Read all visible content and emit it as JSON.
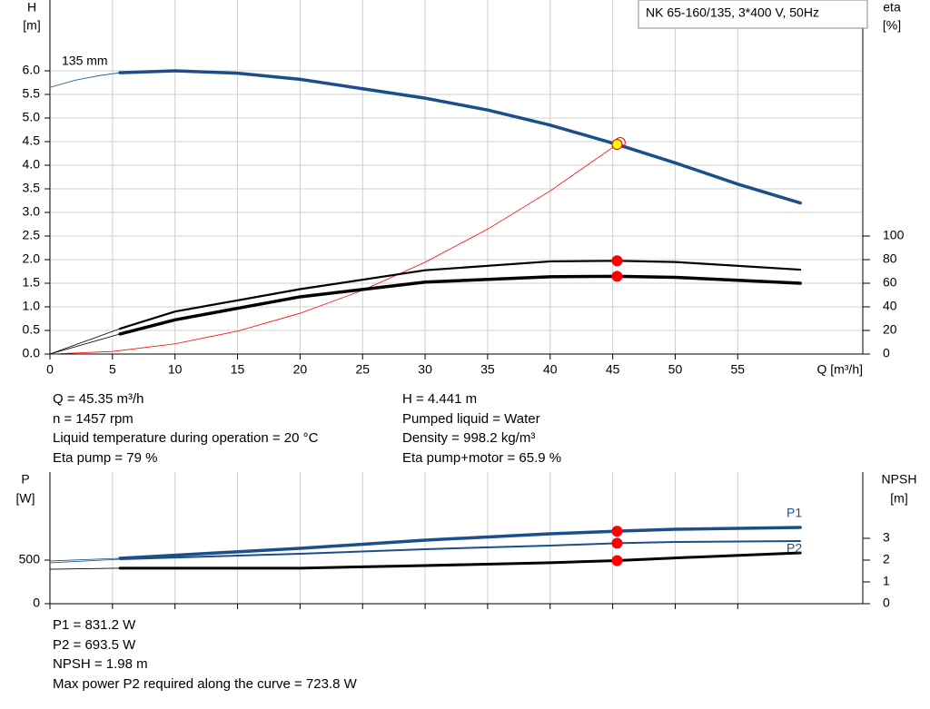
{
  "chart_data": [
    {
      "type": "line",
      "title": "NK 65-160/135, 3*400 V, 50Hz",
      "y_label": "H",
      "y_unit": "[m]",
      "y2_label": "eta",
      "y2_unit": "[%]",
      "x_label": "Q [m³/h]",
      "curve_label": "135 mm",
      "xlim": [
        0,
        65
      ],
      "xticks": [
        0,
        5,
        10,
        15,
        20,
        25,
        30,
        35,
        40,
        45,
        50,
        55
      ],
      "ylim": [
        0,
        7.5
      ],
      "yticks": [
        {
          "value": 0,
          "label": "0.0"
        },
        0.5,
        {
          "value": 1,
          "label": "1.0"
        },
        1.5,
        {
          "value": 2,
          "label": "2.0"
        },
        2.5,
        {
          "value": 3,
          "label": "3.0"
        },
        3.5,
        {
          "value": 4,
          "label": "4.0"
        },
        4.5,
        {
          "value": 5,
          "label": "5.0"
        },
        5.5,
        {
          "value": 6,
          "label": "6.0"
        }
      ],
      "y2lim": [
        0,
        300
      ],
      "y2ticks": [
        0,
        20,
        40,
        60,
        80,
        100
      ],
      "grid": true,
      "series": [
        {
          "color": "#1a4f8a",
          "width": 0.8,
          "x": [
            0,
            2,
            4,
            5.6
          ],
          "values": [
            5.65,
            5.8,
            5.9,
            5.96
          ]
        },
        {
          "color": "#1a4f8a",
          "width": 3.5,
          "x": [
            5.6,
            10,
            15,
            20,
            25,
            30,
            35,
            40,
            45.35,
            50,
            55,
            60
          ],
          "values": [
            5.96,
            6.0,
            5.95,
            5.82,
            5.62,
            5.42,
            5.17,
            4.85,
            4.441,
            4.05,
            3.6,
            3.2
          ]
        },
        {
          "color": "#ff0000",
          "width": 0.8,
          "x": [
            0,
            5,
            10,
            15,
            20,
            25,
            30,
            35,
            40,
            45.35
          ],
          "values": [
            0,
            0.054,
            0.216,
            0.486,
            0.864,
            1.35,
            1.944,
            2.646,
            3.456,
            4.441
          ]
        },
        {
          "color": "#000000",
          "width": 0.8,
          "axis": "y2",
          "x": [
            0,
            5.6
          ],
          "values": [
            0,
            21.5
          ]
        },
        {
          "color": "#000000",
          "width": 2.2,
          "axis": "y2",
          "x": [
            5.6,
            10,
            20,
            30,
            40,
            45.35,
            50,
            60
          ],
          "values": [
            21.5,
            36,
            55,
            71,
            78.5,
            79,
            78,
            71.5
          ]
        },
        {
          "color": "#000000",
          "width": 0.8,
          "axis": "y2",
          "x": [
            0,
            5.6
          ],
          "values": [
            0,
            17
          ]
        },
        {
          "color": "#000000",
          "width": 3.5,
          "axis": "y2",
          "x": [
            5.6,
            10,
            20,
            30,
            40,
            45.35,
            50,
            60
          ],
          "values": [
            17,
            29,
            48.5,
            61,
            65.5,
            65.9,
            65,
            60
          ]
        }
      ],
      "markers": [
        {
          "x": 45.6,
          "y": 4.48,
          "color": "#ff0000",
          "fill": "none"
        },
        {
          "x": 45.35,
          "y": 4.441,
          "color": "#cc0000",
          "fill": "#ffff00"
        },
        {
          "x": 45.35,
          "y": 79,
          "axis": "y2",
          "color": "#ff0000",
          "fill": "#ff0000"
        },
        {
          "x": 45.35,
          "y": 65.9,
          "axis": "y2",
          "color": "#ff0000",
          "fill": "#ff0000"
        }
      ]
    },
    {
      "type": "line",
      "y_label": "P",
      "y_unit": "[W]",
      "y2_label": "NPSH",
      "y2_unit": "[m]",
      "xlim": [
        0,
        65
      ],
      "xticks": [
        0,
        5,
        10,
        15,
        20,
        25,
        30,
        35,
        40,
        45,
        50,
        55
      ],
      "ylim": [
        0,
        1510
      ],
      "yticks": [
        0,
        500
      ],
      "y2lim": [
        0,
        6.04
      ],
      "y2ticks": [
        0,
        1,
        2,
        3
      ],
      "grid": false,
      "series": [
        {
          "color": "#1a4f8a",
          "width": 0.8,
          "x": [
            0,
            5.6
          ],
          "values": [
            490,
            521
          ]
        },
        {
          "name": "P1",
          "color": "#1a4f8a",
          "width": 3.5,
          "x": [
            5.6,
            20,
            30,
            40,
            45.35,
            50,
            60
          ],
          "values": [
            521,
            635,
            729,
            802,
            831.2,
            854,
            875
          ]
        },
        {
          "color": "#1a4f8a",
          "width": 0.8,
          "x": [
            0,
            5.6
          ],
          "values": [
            469,
            510
          ]
        },
        {
          "name": "P2",
          "color": "#1a4f8a",
          "width": 2,
          "x": [
            5.6,
            20,
            30,
            40,
            45.35,
            50,
            60
          ],
          "values": [
            510,
            573,
            625,
            667,
            693.5,
            708,
            719
          ]
        },
        {
          "color": "#000000",
          "width": 0.8,
          "axis": "y2",
          "x": [
            0,
            5.6
          ],
          "values": [
            1.58,
            1.63
          ]
        },
        {
          "color": "#000000",
          "width": 3,
          "axis": "y2",
          "x": [
            5.6,
            20,
            30,
            40,
            45.35,
            50,
            60
          ],
          "values": [
            1.63,
            1.63,
            1.75,
            1.88,
            1.98,
            2.1,
            2.33
          ]
        }
      ],
      "markers": [
        {
          "x": 45.35,
          "y": 831.2,
          "color": "#ff0000",
          "fill": "#ff0000"
        },
        {
          "x": 45.35,
          "y": 693.5,
          "color": "#ff0000",
          "fill": "#ff0000"
        },
        {
          "x": 45.35,
          "y": 1.98,
          "axis": "y2",
          "color": "#ff0000",
          "fill": "#ff0000"
        }
      ]
    }
  ],
  "operating_point": {
    "left": [
      "Q = 45.35 m³/h",
      "n = 1457 rpm",
      "Liquid temperature during operation = 20 °C",
      "Eta pump = 79 %"
    ],
    "right": [
      "H = 4.441 m",
      "Pumped liquid = Water",
      "Density = 998.2 kg/m³",
      "Eta pump+motor = 65.9 %"
    ]
  },
  "power_info": [
    "P1 = 831.2 W",
    "P2 = 693.5 W",
    "NPSH = 1.98 m",
    "Max power P2 required along the curve = 723.8 W"
  ]
}
